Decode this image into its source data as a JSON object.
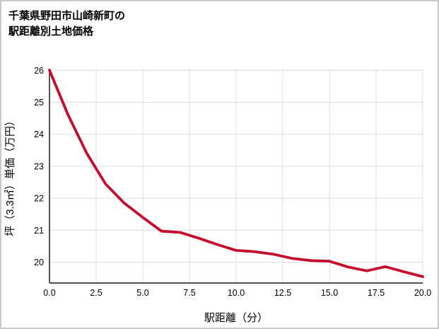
{
  "title": {
    "line1": "千葉県野田市山崎新町の",
    "line2": "駅距離別土地価格"
  },
  "chart_data": {
    "type": "line",
    "title": "千葉県野田市山崎新町の駅距離別土地価格",
    "xlabel": "駅距離（分）",
    "ylabel": "坪（3.3㎡）単価（万円）",
    "x": [
      0,
      1,
      2,
      3,
      4,
      5,
      6,
      7,
      8,
      9,
      10,
      11,
      12,
      13,
      14,
      15,
      16,
      17,
      18,
      19,
      20
    ],
    "values": [
      26.0,
      24.6,
      23.4,
      22.45,
      21.85,
      21.4,
      20.97,
      20.93,
      20.75,
      20.55,
      20.37,
      20.33,
      20.25,
      20.12,
      20.05,
      20.03,
      19.85,
      19.73,
      19.86,
      19.7,
      19.55
    ],
    "xlim": [
      0,
      20
    ],
    "ylim": [
      19.35,
      26.05
    ],
    "x_ticks": [
      0,
      2.5,
      5,
      7.5,
      10,
      12.5,
      15,
      17.5,
      20
    ],
    "x_tick_labels": [
      "0.0",
      "2.5",
      "5.0",
      "7.5",
      "10.0",
      "12.5",
      "15.0",
      "17.5",
      "20.0"
    ],
    "y_ticks": [
      20,
      21,
      22,
      23,
      24,
      25,
      26
    ],
    "y_tick_labels": [
      "20",
      "21",
      "22",
      "23",
      "24",
      "25",
      "26"
    ],
    "grid": true,
    "legend": "none",
    "line_color": "#c60c2d",
    "grid_color": "#dcdcdc",
    "spine_color": "#1a1a1a",
    "text_color": "#000000"
  }
}
